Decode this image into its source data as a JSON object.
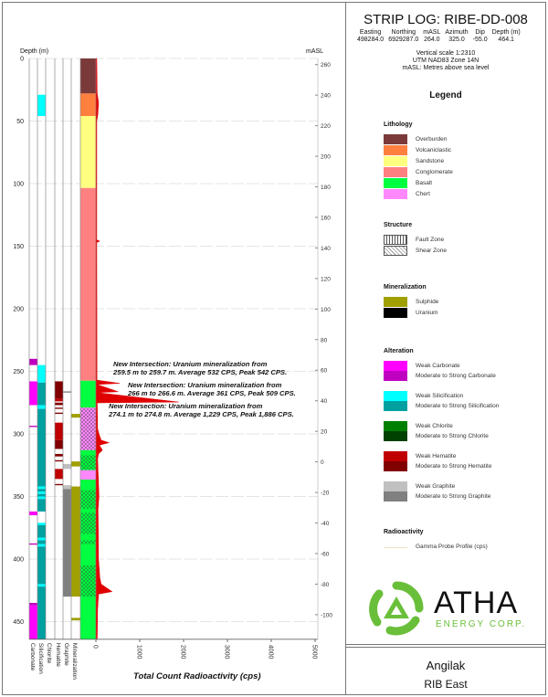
{
  "header": {
    "title": "STRIP LOG: RIBE-DD-008",
    "columns": [
      {
        "label": "Easting",
        "value": "498284.0"
      },
      {
        "label": "Northing",
        "value": "6929287.0"
      },
      {
        "label": "mASL",
        "value": "264.0"
      },
      {
        "label": "Azimuth",
        "value": "325.0"
      },
      {
        "label": "Dip",
        "value": "-55.0"
      },
      {
        "label": "Depth (m)",
        "value": "464.1"
      }
    ],
    "notes": [
      "Vertical scale 1:2310",
      "UTM NAD83 Zone 14N",
      "mASL: Metres above sea level"
    ]
  },
  "legend": {
    "title": "Legend",
    "sections": [
      {
        "title": "Lithology",
        "items": [
          {
            "label": "Overburden",
            "color": "#7b3a3a"
          },
          {
            "label": "Volcaniclastic",
            "color": "#ff7f3f"
          },
          {
            "label": "Sandstone",
            "color": "#ffff80"
          },
          {
            "label": "Conglomerate",
            "color": "#ff8080"
          },
          {
            "label": "Basalt",
            "color": "#00ff40"
          },
          {
            "label": "Chert",
            "color": "#ff88ff"
          }
        ]
      },
      {
        "title": "Structure",
        "items": [
          {
            "label": "Fault Zone",
            "pattern": "fault"
          },
          {
            "label": "Shear Zone",
            "pattern": "shear"
          }
        ]
      },
      {
        "title": "Mineralization",
        "items": [
          {
            "label": "Sulphide",
            "color": "#a0a000"
          },
          {
            "label": "Uranium",
            "color": "#000000"
          }
        ]
      },
      {
        "title": "Alteration",
        "items": [
          {
            "label": "Weak Carbonate",
            "color": "#ff00ff"
          },
          {
            "label": "Moderate to Strong Carbonate",
            "color": "#c000c0"
          },
          {
            "label": "Weak Silicification",
            "color": "#00ffff"
          },
          {
            "label": "Moderate to Strong Silicification",
            "color": "#00a0a0"
          },
          {
            "label": "Weak Chlorite",
            "color": "#008000"
          },
          {
            "label": "Moderate to Strong Chlorite",
            "color": "#004000"
          },
          {
            "label": "Weak Hematite",
            "color": "#c00000"
          },
          {
            "label": "Moderate to Strong Hematite",
            "color": "#800000"
          },
          {
            "label": "Weak Graphite",
            "color": "#c0c0c0"
          },
          {
            "label": "Moderate to Strong Graphite",
            "color": "#808080"
          }
        ]
      },
      {
        "title": "Radioactivity",
        "items": [
          {
            "label": "Gamma Probe Profile (cps)",
            "line": "#f0e0c0"
          }
        ]
      }
    ]
  },
  "logo": {
    "name": "ATHA",
    "tagline": "ENERGY CORP.",
    "color": "#6abf3a"
  },
  "footer": {
    "project": "Angilak",
    "area": "RIB East"
  },
  "chart_data": {
    "type": "strip-log",
    "depth_label": "Depth (m)",
    "depth_ticks": [
      0,
      50,
      100,
      150,
      200,
      250,
      300,
      350,
      400,
      450
    ],
    "depth_range": [
      0,
      464.1
    ],
    "masl_label": "mASL",
    "masl_ticks": [
      260,
      240,
      220,
      200,
      180,
      160,
      140,
      120,
      100,
      80,
      60,
      40,
      20,
      0,
      -20,
      -40,
      -60,
      -80,
      -100
    ],
    "xlabel": "Total Count Radioactivity (cps)",
    "x_ticks": [
      0,
      1000,
      2000,
      3000,
      4000,
      5000
    ],
    "xlim": [
      0,
      5000
    ],
    "grid": true,
    "column_labels": [
      "Carbonate",
      "Silicification",
      "Chlorite",
      "Hematite",
      "Graphite",
      "Mineralization"
    ],
    "columns": {
      "carbonate": [
        [
          240,
          245,
          "#c000c0"
        ],
        [
          258,
          277,
          "#ff00ff"
        ],
        [
          293.5,
          294.5,
          "#c000c0"
        ],
        [
          362,
          365,
          "#ff00ff"
        ],
        [
          387.5,
          388.5,
          "#c000c0"
        ],
        [
          435,
          437,
          "#c000c0"
        ],
        [
          437,
          464.1,
          "#ff00ff"
        ]
      ],
      "silicification": [
        [
          29,
          46,
          "#00ffff"
        ],
        [
          245,
          259,
          "#00ffff"
        ],
        [
          259,
          277,
          "#00a0a0"
        ],
        [
          277,
          280,
          "#00ffff"
        ],
        [
          280,
          342,
          "#00a0a0"
        ],
        [
          342,
          344,
          "#00ffff"
        ],
        [
          344,
          346,
          "#00a0a0"
        ],
        [
          346,
          348,
          "#00ffff"
        ],
        [
          348,
          350,
          "#00a0a0"
        ],
        [
          350,
          352,
          "#00ffff"
        ],
        [
          352,
          362,
          "#00a0a0"
        ],
        [
          371,
          373,
          "#00ffff"
        ],
        [
          373,
          383,
          "#00a0a0"
        ],
        [
          383,
          385,
          "#00ffff"
        ],
        [
          385,
          388,
          "#00a0a0"
        ],
        [
          388,
          390,
          "#00ffff"
        ],
        [
          390,
          420,
          "#00a0a0"
        ],
        [
          420,
          422,
          "#00ffff"
        ],
        [
          422,
          464.1,
          "#00a0a0"
        ]
      ],
      "chlorite": [],
      "hematite": [
        [
          258,
          272,
          "#800000"
        ],
        [
          272,
          274,
          "#c00000"
        ],
        [
          275,
          277,
          "#800000"
        ],
        [
          279,
          280,
          "#800000"
        ],
        [
          283,
          284,
          "#800000"
        ],
        [
          291,
          305,
          "#c00000"
        ],
        [
          305,
          312,
          "#800000"
        ],
        [
          316,
          318,
          "#800000"
        ],
        [
          321,
          322,
          "#800000"
        ],
        [
          328,
          336,
          "#c00000"
        ],
        [
          340,
          341,
          "#800000"
        ]
      ],
      "graphite": [
        [
          266,
          267,
          "#808080"
        ],
        [
          324,
          328,
          "#c0c0c0"
        ],
        [
          341,
          344,
          "#c0c0c0"
        ],
        [
          344,
          430,
          "#808080"
        ]
      ],
      "mineralization": [
        [
          284,
          287,
          "#a0a000"
        ],
        [
          322,
          326,
          "#a0a000"
        ],
        [
          342,
          430,
          "#a0a000"
        ],
        [
          447,
          449,
          "#a0a000"
        ]
      ]
    },
    "lithology": [
      [
        0,
        28,
        "Overburden"
      ],
      [
        28,
        46,
        "Volcaniclastic"
      ],
      [
        46,
        103.5,
        "Sandstone"
      ],
      [
        103.5,
        257.5,
        "Conglomerate"
      ],
      [
        257.5,
        279,
        "Basalt"
      ],
      [
        279,
        313,
        "Chert"
      ],
      [
        313,
        329,
        "Basalt"
      ],
      [
        329,
        336.5,
        "Chert"
      ],
      [
        336.5,
        464.1,
        "Basalt"
      ]
    ],
    "structure": [
      [
        279,
        313,
        "shear"
      ],
      [
        317,
        329,
        "shear"
      ],
      [
        345,
        360,
        "shear"
      ],
      [
        363,
        380,
        "shear"
      ],
      [
        385,
        388,
        "shear"
      ],
      [
        405,
        430,
        "shear"
      ]
    ],
    "gamma_profile": [
      [
        0,
        20
      ],
      [
        28,
        30
      ],
      [
        35,
        60
      ],
      [
        45,
        45
      ],
      [
        50,
        20
      ],
      [
        145,
        20
      ],
      [
        146,
        90
      ],
      [
        147,
        20
      ],
      [
        257,
        25
      ],
      [
        259.6,
        542
      ],
      [
        260.5,
        30
      ],
      [
        266.3,
        509
      ],
      [
        267,
        30
      ],
      [
        274.5,
        1886
      ],
      [
        275.2,
        30
      ],
      [
        296,
        40
      ],
      [
        300,
        70
      ],
      [
        305,
        120
      ],
      [
        307,
        300
      ],
      [
        309,
        80
      ],
      [
        313,
        150
      ],
      [
        316,
        60
      ],
      [
        320,
        40
      ],
      [
        340,
        60
      ],
      [
        350,
        70
      ],
      [
        360,
        50
      ],
      [
        400,
        60
      ],
      [
        415,
        90
      ],
      [
        420,
        120
      ],
      [
        426,
        370
      ],
      [
        428,
        60
      ],
      [
        440,
        40
      ],
      [
        464.1,
        30
      ]
    ],
    "annotations": [
      {
        "line1": "New Intersection: Uranium mineralization from",
        "line2": "259.5 m to 259.7 m. Average 532 CPS, Peak 542 CPS."
      },
      {
        "line1": "New Intersection: Uranium mineralization from",
        "line2": "266 m to 266.6 m. Average 361 CPS, Peak 509 CPS."
      },
      {
        "line1": "New Intersection: Uranium mineralization from",
        "line2": "274.1 m to 274.8 m. Average 1,229 CPS, Peak 1,886 CPS."
      }
    ]
  }
}
